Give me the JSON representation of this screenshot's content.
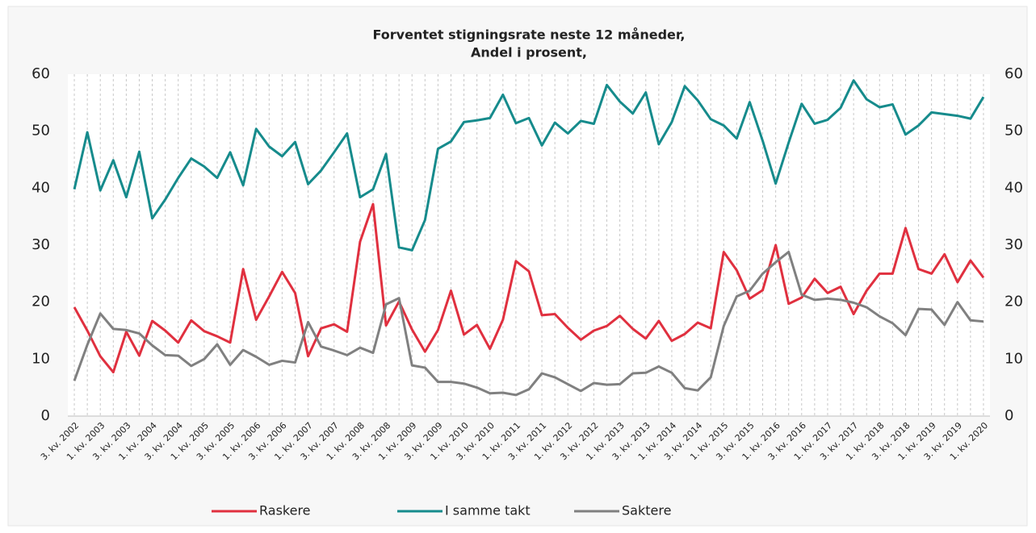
{
  "chart_data": {
    "type": "line",
    "title": "Forventet stigningsrate neste 12 måneder,",
    "subtitle": "Andel i prosent,",
    "categories": [
      "3. kv. 2002",
      null,
      "1. kv. 2003",
      null,
      "3. kv. 2003",
      null,
      "1. kv. 2004",
      null,
      "3. kv. 2004",
      null,
      "1. kv. 2005",
      null,
      "3. kv. 2005",
      null,
      "1. kv. 2006",
      null,
      "3. kv. 2006",
      null,
      "1. kv. 2007",
      null,
      "3. kv. 2007",
      null,
      "1. kv. 2008",
      null,
      "3. kv. 2008",
      null,
      "1. kv. 2009",
      null,
      "3. kv. 2009",
      null,
      "1. kv. 2010",
      null,
      "3. kv. 2010",
      null,
      "1. kv. 2011",
      null,
      "3. kv. 2011",
      null,
      "1. kv. 2012",
      null,
      "3. kv. 2012",
      null,
      "1. kv. 2013",
      null,
      "3. kv. 2013",
      null,
      "1. kv. 2014",
      null,
      "3. kv. 2014",
      null,
      "1. kv. 2015",
      null,
      "3. kv. 2015",
      null,
      "1. kv. 2016",
      null,
      "3. kv. 2016",
      null,
      "1. kv. 2017",
      null,
      "3. kv. 2017",
      null,
      "1. kv. 2018",
      null,
      "3. kv. 2018",
      null,
      "1. kv. 2019",
      null,
      "3. kv. 2019",
      null,
      "1. kv. 2020"
    ],
    "series": [
      {
        "name": "Raskere",
        "color": "#e0303f",
        "values": [
          19.1,
          15.0,
          10.5,
          7.7,
          14.8,
          10.6,
          16.7,
          15.0,
          12.9,
          16.8,
          14.9,
          14.0,
          12.9,
          25.8,
          16.9,
          21.0,
          25.3,
          21.6,
          10.5,
          15.4,
          16.1,
          14.8,
          30.6,
          37.2,
          15.9,
          20.1,
          15.2,
          11.3,
          15.1,
          22.0,
          14.3,
          16.0,
          11.8,
          16.9,
          27.2,
          25.4,
          17.7,
          17.9,
          15.5,
          13.4,
          15.0,
          15.8,
          17.6,
          15.3,
          13.6,
          16.7,
          13.2,
          14.4,
          16.4,
          15.4,
          28.8,
          25.6,
          20.6,
          22.1,
          30.0,
          19.7,
          20.8,
          24.1,
          21.6,
          22.7,
          17.9,
          22.0,
          25.0,
          25.0,
          33.0,
          25.8,
          25.0,
          28.4,
          23.5,
          27.3,
          24.3
        ]
      },
      {
        "name": "I samme takt",
        "color": "#168b8c",
        "values": [
          39.8,
          49.8,
          39.6,
          44.9,
          38.4,
          46.4,
          34.7,
          38.0,
          41.8,
          45.2,
          43.8,
          41.8,
          46.3,
          40.5,
          50.4,
          47.3,
          45.6,
          48.1,
          40.7,
          43.1,
          46.3,
          49.6,
          38.4,
          39.8,
          46.0,
          29.6,
          29.1,
          34.4,
          46.9,
          48.2,
          51.6,
          51.9,
          52.3,
          56.4,
          51.4,
          52.3,
          47.5,
          51.5,
          49.6,
          51.8,
          51.3,
          58.1,
          55.2,
          53.1,
          56.8,
          47.7,
          51.6,
          57.9,
          55.4,
          52.1,
          51.0,
          48.7,
          55.1,
          48.3,
          40.8,
          48.0,
          54.8,
          51.3,
          52.0,
          54.1,
          58.9,
          55.6,
          54.2,
          54.7,
          49.4,
          51.0,
          53.3,
          53.0,
          52.7,
          52.2,
          56.0
        ]
      },
      {
        "name": "Saktere",
        "color": "#808080",
        "values": [
          6.2,
          12.5,
          18.0,
          15.3,
          15.1,
          14.5,
          12.4,
          10.7,
          10.6,
          8.8,
          10.0,
          12.6,
          9.0,
          11.6,
          10.4,
          9.0,
          9.7,
          9.4,
          16.5,
          12.2,
          11.5,
          10.7,
          12.0,
          11.1,
          19.6,
          20.7,
          8.9,
          8.5,
          6.0,
          6.0,
          5.7,
          5.0,
          4.0,
          4.1,
          3.7,
          4.7,
          7.5,
          6.8,
          5.6,
          4.4,
          5.8,
          5.5,
          5.6,
          7.5,
          7.6,
          8.7,
          7.6,
          4.9,
          4.5,
          6.8,
          15.8,
          21.0,
          22.0,
          25.0,
          27.0,
          28.8,
          21.3,
          20.4,
          20.6,
          20.4,
          19.9,
          19.1,
          17.5,
          16.3,
          14.2,
          18.8,
          18.7,
          16.0,
          20.0,
          16.8,
          16.6
        ]
      }
    ],
    "ylim": [
      0,
      60
    ],
    "yticks": [
      0,
      10,
      20,
      30,
      40,
      50,
      60
    ],
    "y2lim": [
      0,
      60
    ],
    "y2ticks": [
      0,
      10,
      20,
      30,
      40,
      50,
      60
    ],
    "grid": "x",
    "legend": "bottom"
  }
}
